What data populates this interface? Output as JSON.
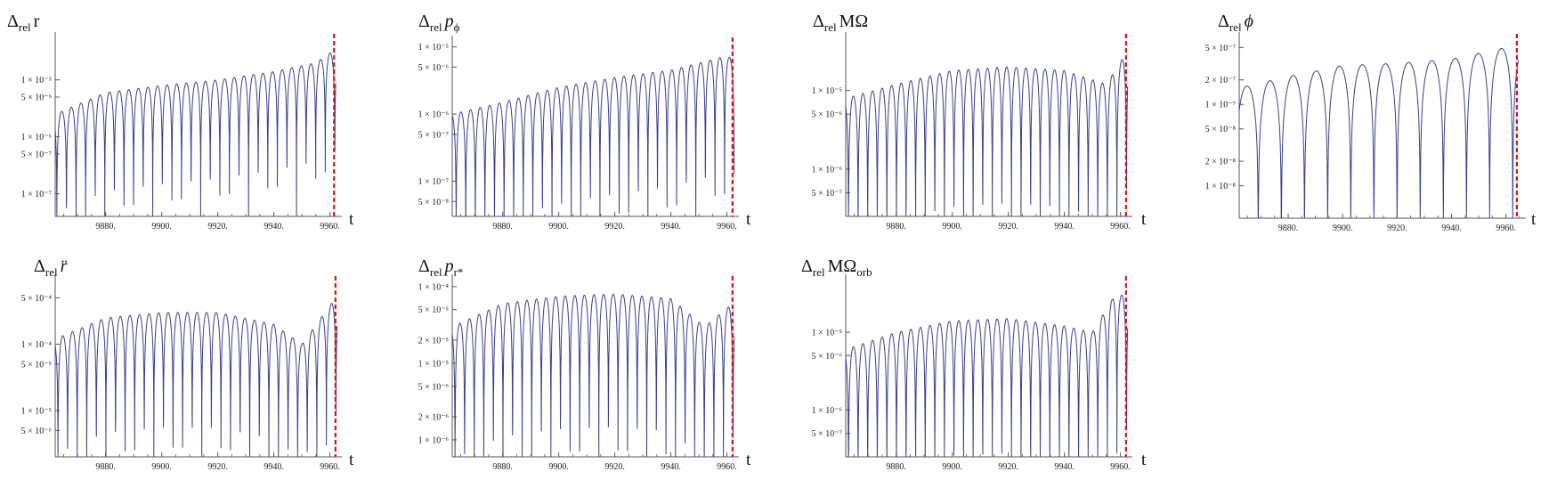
{
  "figure": {
    "x_axis_label": "t",
    "x_ticks": [
      9880,
      9900,
      9920,
      9940,
      9960
    ],
    "x_tick_labels": [
      "9880.",
      "9900.",
      "9920.",
      "9940.",
      "9960."
    ],
    "colors": {
      "series": "#3a3f8f",
      "marker": "#dd1111",
      "axis": "#555555"
    }
  },
  "chart_data": [
    {
      "type": "line",
      "title": {
        "delta": "Δ",
        "sub": "rel",
        "quantity": "r",
        "quantity_sub": ""
      },
      "xlabel": "t",
      "x_range": [
        9862,
        9963
      ],
      "y_scale": "log",
      "ylim": [
        4e-08,
        6e-05
      ],
      "y_ticks": [
        1e-07,
        5e-07,
        1e-06,
        5e-06,
        1e-05
      ],
      "y_tick_labels": [
        "1 × 10⁻⁷",
        "5 × 10⁻⁷",
        "1 × 10⁻⁶",
        "5 × 10⁻⁶",
        "1 × 10⁻⁵"
      ],
      "series": [
        {
          "period": 3.42,
          "phase": 9862.6,
          "start": 9862,
          "peaks": [
            [
              9862,
              2.5e-06
            ],
            [
              9880,
              6e-06
            ],
            [
              9900,
              8e-06
            ],
            [
              9920,
              1e-05
            ],
            [
              9940,
              1.4e-05
            ],
            [
              9955,
              2e-05
            ],
            [
              9960,
              3e-05
            ]
          ]
        }
      ],
      "marker_x": 9961.5
    },
    {
      "type": "line",
      "title": {
        "delta": "Δ",
        "sub": "rel",
        "quantity": "p",
        "quantity_sub": "ϕ"
      },
      "xlabel": "t",
      "x_range": [
        9862,
        9963
      ],
      "y_scale": "log",
      "ylim": [
        3e-08,
        1.3e-05
      ],
      "y_ticks": [
        5e-08,
        1e-07,
        5e-07,
        1e-06,
        5e-06,
        1e-05
      ],
      "y_tick_labels": [
        "5 × 10⁻⁸",
        "1 × 10⁻⁷",
        "5 × 10⁻⁷",
        "1 × 10⁻⁶",
        "5 × 10⁻⁶",
        "1 × 10⁻⁵"
      ],
      "series": [
        {
          "period": 3.42,
          "phase": 9863.4,
          "start": 9862,
          "peaks": [
            [
              9862,
              1e-06
            ],
            [
              9880,
              1.5e-06
            ],
            [
              9900,
              2.5e-06
            ],
            [
              9920,
              3.5e-06
            ],
            [
              9940,
              4.5e-06
            ],
            [
              9958,
              7e-06
            ]
          ]
        }
      ],
      "marker_x": 9962
    },
    {
      "type": "line",
      "title": {
        "delta": "Δ",
        "sub": "rel",
        "quantity": "MΩ",
        "quantity_sub": ""
      },
      "xlabel": "t",
      "x_range": [
        9862,
        9963
      ],
      "y_scale": "log",
      "ylim": [
        2.5e-07,
        5e-05
      ],
      "y_ticks": [
        5e-07,
        1e-06,
        5e-06,
        1e-05
      ],
      "y_tick_labels": [
        "5 × 10⁻⁷",
        "1 × 10⁻⁶",
        "5 × 10⁻⁶",
        "1 × 10⁻⁵"
      ],
      "series": [
        {
          "period": 3.42,
          "phase": 9863.0,
          "start": 9862,
          "peaks": [
            [
              9862,
              8e-06
            ],
            [
              9880,
              1.2e-05
            ],
            [
              9900,
              1.8e-05
            ],
            [
              9920,
              2e-05
            ],
            [
              9940,
              1.8e-05
            ],
            [
              9955,
              1.2e-05
            ],
            [
              9962,
              3e-05
            ]
          ]
        }
      ],
      "marker_x": 9962
    },
    {
      "type": "line",
      "title": {
        "delta": "Δ",
        "sub": "rel",
        "quantity": "ϕ",
        "quantity_sub": ""
      },
      "xlabel": "t",
      "x_range": [
        9862,
        9966
      ],
      "y_scale": "log",
      "ylim": [
        4e-09,
        7e-07
      ],
      "y_ticks": [
        1e-08,
        2e-08,
        5e-08,
        1e-07,
        2e-07,
        5e-07
      ],
      "y_tick_labels": [
        "1 × 10⁻⁸",
        "2 × 10⁻⁸",
        "5 × 10⁻⁸",
        "1 × 10⁻⁷",
        "2 × 10⁻⁷",
        "5 × 10⁻⁷"
      ],
      "series": [
        {
          "period": 8.5,
          "phase": 9869.0,
          "start": 9862,
          "peaks": [
            [
              9862,
              1.6e-07
            ],
            [
              9880,
              2.2e-07
            ],
            [
              9900,
              3e-07
            ],
            [
              9920,
              3.2e-07
            ],
            [
              9940,
              3.6e-07
            ],
            [
              9960,
              5e-07
            ]
          ]
        }
      ],
      "marker_x": 9964
    },
    {
      "type": "line",
      "title": {
        "delta": "Δ",
        "sub": "rel",
        "quantity": "r̈",
        "quantity_sub": ""
      },
      "xlabel": "t",
      "x_range": [
        9862,
        9963
      ],
      "y_scale": "log",
      "ylim": [
        2e-06,
        0.001
      ],
      "y_ticks": [
        5e-06,
        1e-05,
        5e-05,
        0.0001,
        0.0005
      ],
      "y_tick_labels": [
        "5 × 10⁻⁶",
        "1 × 10⁻⁵",
        "5 × 10⁻⁵",
        "1 × 10⁻⁴",
        "5 × 10⁻⁴"
      ],
      "series": [
        {
          "period": 3.42,
          "phase": 9863.0,
          "start": 9862,
          "peaks": [
            [
              9862,
              0.00012
            ],
            [
              9880,
              0.00025
            ],
            [
              9900,
              0.0003
            ],
            [
              9920,
              0.0003
            ],
            [
              9940,
              0.0002
            ],
            [
              9950,
              0.0001
            ],
            [
              9962,
              0.0005
            ]
          ]
        }
      ],
      "marker_x": 9962
    },
    {
      "type": "line",
      "title": {
        "delta": "Δ",
        "sub": "rel",
        "quantity": "p",
        "quantity_sub": "r*"
      },
      "xlabel": "t",
      "x_range": [
        9862,
        9963
      ],
      "y_scale": "log",
      "ylim": [
        6e-07,
        0.00013
      ],
      "y_ticks": [
        1e-06,
        2e-06,
        5e-06,
        1e-05,
        2e-05,
        5e-05,
        0.0001
      ],
      "y_tick_labels": [
        "1 × 10⁻⁶",
        "2 × 10⁻⁶",
        "5 × 10⁻⁶",
        "1 × 10⁻⁵",
        "2 × 10⁻⁵",
        "5 × 10⁻⁵",
        "1 × 10⁻⁴"
      ],
      "series": [
        {
          "period": 3.42,
          "phase": 9863.0,
          "start": 9862,
          "peaks": [
            [
              9862,
              3e-05
            ],
            [
              9880,
              6e-05
            ],
            [
              9900,
              7.5e-05
            ],
            [
              9920,
              8e-05
            ],
            [
              9940,
              7e-05
            ],
            [
              9952,
              3e-05
            ],
            [
              9962,
              6e-05
            ]
          ]
        }
      ],
      "marker_x": 9962
    },
    {
      "type": "line",
      "title": {
        "delta": "Δ",
        "sub": "rel",
        "quantity": "MΩ",
        "quantity_sub": "orb"
      },
      "xlabel": "t",
      "x_range": [
        9862,
        9963
      ],
      "y_scale": "log",
      "ylim": [
        2.5e-07,
        5e-05
      ],
      "y_ticks": [
        5e-07,
        1e-06,
        5e-06,
        1e-05
      ],
      "y_tick_labels": [
        "5 × 10⁻⁷",
        "1 × 10⁻⁶",
        "5 × 10⁻⁶",
        "1 × 10⁻⁵"
      ],
      "series": [
        {
          "period": 3.42,
          "phase": 9863.0,
          "start": 9862,
          "peaks": [
            [
              9862,
              6e-06
            ],
            [
              9880,
              1e-05
            ],
            [
              9900,
              1.4e-05
            ],
            [
              9920,
              1.5e-05
            ],
            [
              9940,
              1.2e-05
            ],
            [
              9950,
              1e-05
            ],
            [
              9958,
              3e-05
            ]
          ]
        }
      ],
      "marker_x": 9962
    }
  ]
}
